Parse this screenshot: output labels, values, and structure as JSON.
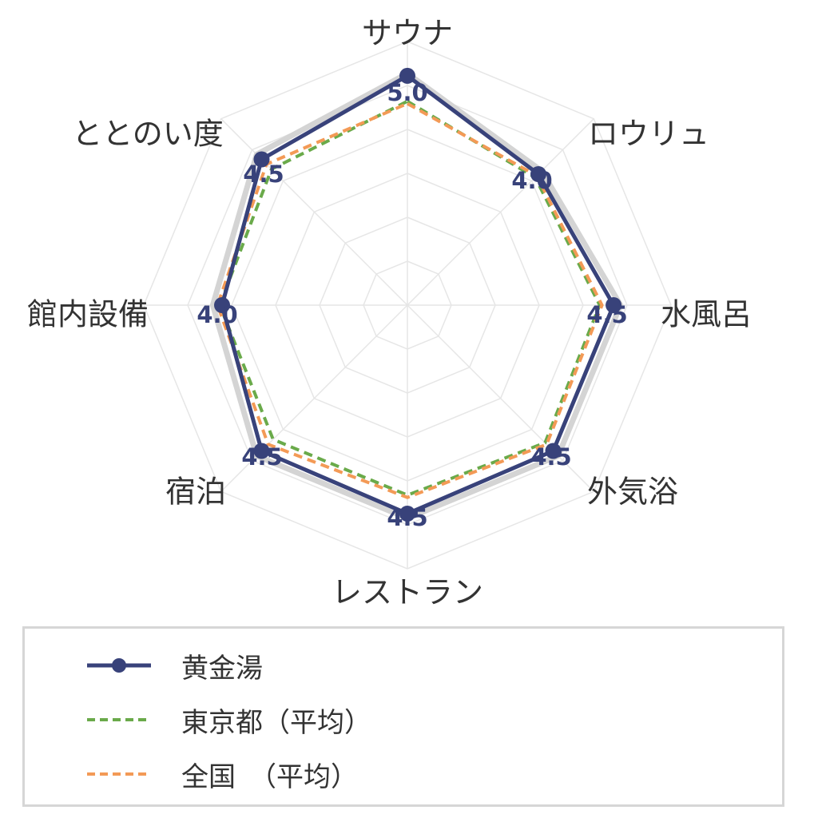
{
  "chart_data": {
    "type": "radar",
    "title": "",
    "axes": [
      "サウナ",
      "ロウリュ",
      "水風呂",
      "外気浴",
      "レストラン",
      "宿泊",
      "館内設備",
      "ととのい度"
    ],
    "value_labels": [
      "5.0",
      "4.0",
      "4.5",
      "4.5",
      "4.5",
      "4.5",
      "4.0",
      "4.5"
    ],
    "rlim": [
      0,
      5
    ],
    "grid": true,
    "legend_placement": "bottom",
    "series": [
      {
        "name": "黄金湯",
        "values": [
          4.95,
          4.0,
          4.45,
          4.45,
          4.5,
          4.45,
          4.0,
          4.45
        ],
        "color": "#38427a",
        "style": "solid-markers"
      },
      {
        "name": "東京都（平均）",
        "values": [
          4.4,
          3.9,
          4.15,
          4.2,
          4.1,
          4.1,
          4.05,
          4.15
        ],
        "color": "#6aaa4a",
        "style": "dashed"
      },
      {
        "name": "全国　（平均）",
        "values": [
          4.35,
          3.95,
          4.2,
          4.25,
          4.15,
          4.25,
          4.1,
          4.3
        ],
        "color": "#f39a56",
        "style": "dashed"
      }
    ],
    "outer_band": {
      "values": [
        5.0,
        4.1,
        4.6,
        4.6,
        4.6,
        4.6,
        4.2,
        4.6
      ],
      "color": "#d4d4d4"
    },
    "value_label_color": "#38427a"
  }
}
